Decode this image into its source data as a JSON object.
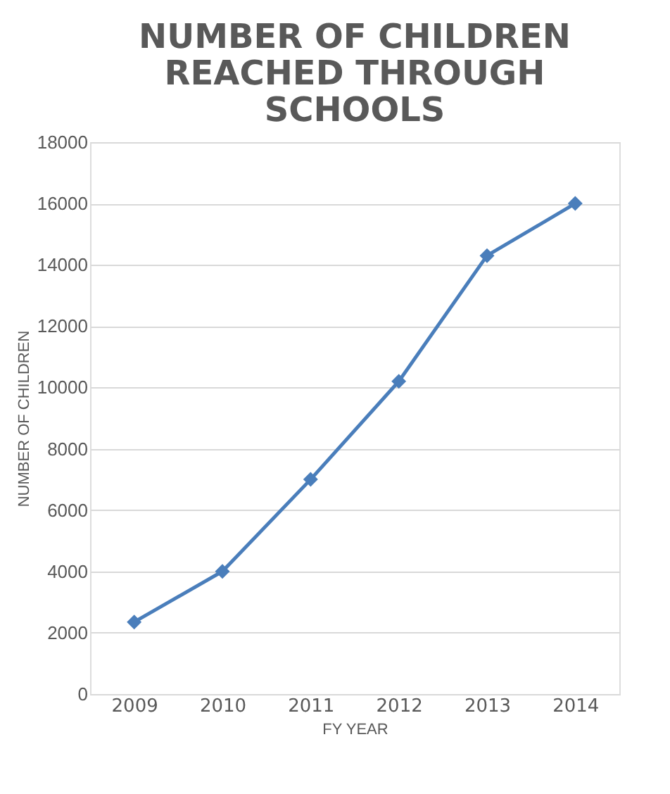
{
  "chart_data": {
    "type": "line",
    "title": "NUMBER OF CHILDREN REACHED THROUGH SCHOOLS",
    "xlabel": "FY YEAR",
    "ylabel": "NUMBER OF CHILDREN",
    "categories": [
      "2009",
      "2010",
      "2011",
      "2012",
      "2013",
      "2014"
    ],
    "series": [
      {
        "color": "#4a7ebb",
        "values": [
          2350,
          4000,
          7000,
          10200,
          14300,
          16000
        ]
      }
    ],
    "ylim": [
      0,
      18000
    ],
    "yticks": [
      0,
      2000,
      4000,
      6000,
      8000,
      10000,
      12000,
      14000,
      16000,
      18000
    ],
    "grid": "y",
    "legend": false,
    "marker": "diamond",
    "line_style": "solid"
  }
}
